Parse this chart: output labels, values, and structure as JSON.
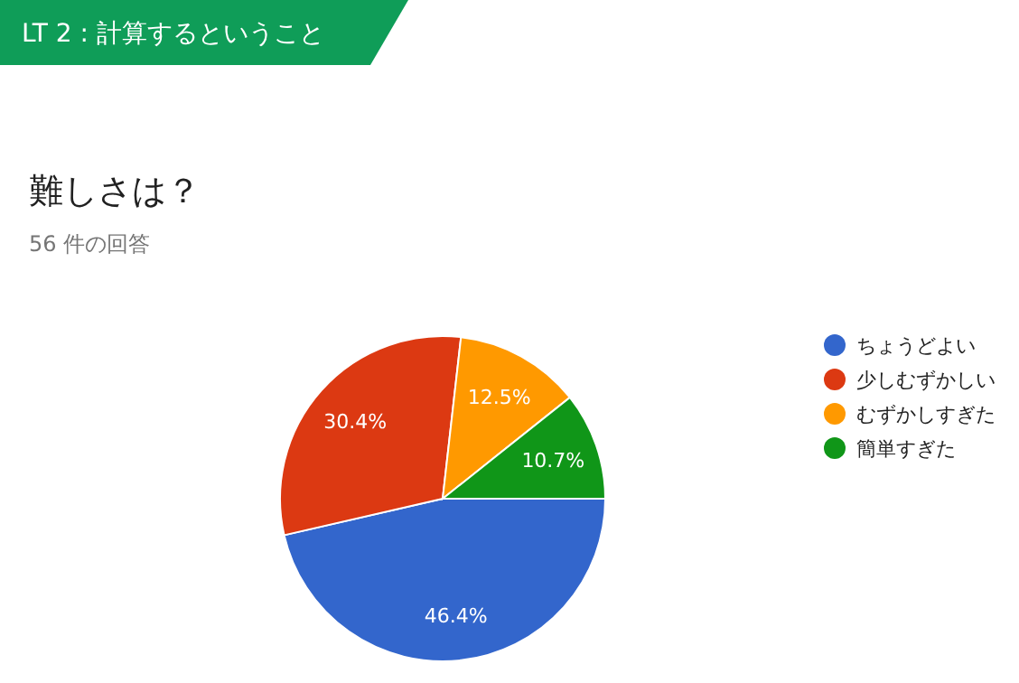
{
  "chart_data": {
    "type": "pie",
    "title": "難しさは？",
    "subtitle": "56 件の回答",
    "annotations": [
      "LT 2 : 計算するということ"
    ],
    "categories": [
      "ちょうどよい",
      "少しむずかしい",
      "むずかしすぎた",
      "簡単すぎた"
    ],
    "values": [
      46.4,
      30.4,
      12.5,
      10.7
    ],
    "colors": [
      "#3366cc",
      "#dc3912",
      "#ff9900",
      "#109618"
    ],
    "value_labels": [
      "46.4%",
      "30.4%",
      "12.5%",
      "10.7%"
    ],
    "legend": "right"
  }
}
